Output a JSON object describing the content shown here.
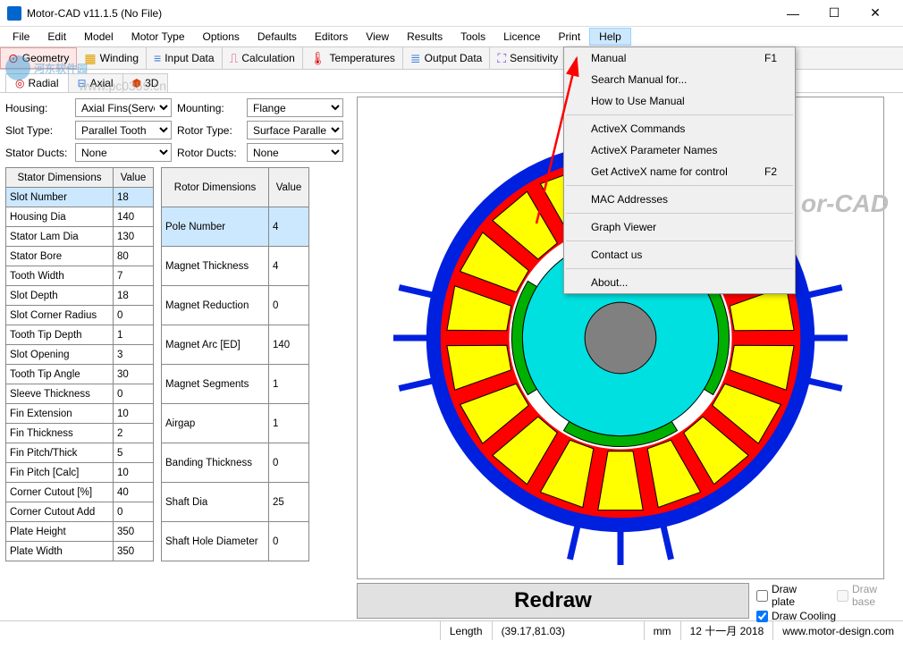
{
  "window": {
    "title": "Motor-CAD v11.1.5 (No File)"
  },
  "menubar": [
    "File",
    "Edit",
    "Model",
    "Motor Type",
    "Options",
    "Defaults",
    "Editors",
    "View",
    "Results",
    "Tools",
    "Licence",
    "Print",
    "Help"
  ],
  "menubar_active_index": 12,
  "toolbar": [
    {
      "label": "Geometry",
      "icon": "⊙",
      "color": "#d00000",
      "active": true
    },
    {
      "label": "Winding",
      "icon": "▦",
      "color": "#e0a000"
    },
    {
      "label": "Input Data",
      "icon": "≡",
      "color": "#4080e0"
    },
    {
      "label": "Calculation",
      "icon": "⎍",
      "color": "#e04080"
    },
    {
      "label": "Temperatures",
      "icon": "🌡",
      "color": "#e00000"
    },
    {
      "label": "Output Data",
      "icon": "≣",
      "color": "#4080e0"
    },
    {
      "label": "Sensitivity",
      "icon": "⛶",
      "color": "#8040e0"
    },
    {
      "label": "",
      "icon": "➜",
      "color": "#00a000"
    }
  ],
  "subtabs": [
    {
      "label": "Radial",
      "icon": "◎",
      "color": "#d00000",
      "active": true
    },
    {
      "label": "Axial",
      "icon": "⊟",
      "color": "#4080e0"
    },
    {
      "label": "3D",
      "icon": "⬢",
      "color": "#e04000"
    }
  ],
  "selectors": {
    "housing": {
      "label": "Housing:",
      "value": "Axial Fins(Servo)"
    },
    "mounting": {
      "label": "Mounting:",
      "value": "Flange"
    },
    "slot_type": {
      "label": "Slot Type:",
      "value": "Parallel Tooth"
    },
    "rotor_type": {
      "label": "Rotor Type:",
      "value": "Surface Parallel"
    },
    "stator_ducts": {
      "label": "Stator Ducts:",
      "value": "None"
    },
    "rotor_ducts": {
      "label": "Rotor Ducts:",
      "value": "None"
    }
  },
  "stator_table": {
    "columns": [
      "Stator Dimensions",
      "Value"
    ],
    "selected_row": 0,
    "rows": [
      [
        "Slot Number",
        "18"
      ],
      [
        "Housing Dia",
        "140"
      ],
      [
        "Stator Lam Dia",
        "130"
      ],
      [
        "Stator Bore",
        "80"
      ],
      [
        "Tooth Width",
        "7"
      ],
      [
        "Slot Depth",
        "18"
      ],
      [
        "Slot Corner Radius",
        "0"
      ],
      [
        "Tooth Tip Depth",
        "1"
      ],
      [
        "Slot Opening",
        "3"
      ],
      [
        "Tooth Tip Angle",
        "30"
      ],
      [
        "Sleeve Thickness",
        "0"
      ],
      [
        "Fin Extension",
        "10"
      ],
      [
        "Fin Thickness",
        "2"
      ],
      [
        "Fin Pitch/Thick",
        "5"
      ],
      [
        "Fin Pitch [Calc]",
        "10"
      ],
      [
        "Corner Cutout [%]",
        "40"
      ],
      [
        "Corner Cutout Add",
        "0"
      ],
      [
        "Plate Height",
        "350"
      ],
      [
        "Plate Width",
        "350"
      ]
    ]
  },
  "rotor_table": {
    "columns": [
      "Rotor Dimensions",
      "Value"
    ],
    "selected_row": 0,
    "rows": [
      [
        "Pole Number",
        "4"
      ],
      [
        "Magnet Thickness",
        "4"
      ],
      [
        "Magnet Reduction",
        "0"
      ],
      [
        "Magnet Arc [ED]",
        "140"
      ],
      [
        "Magnet Segments",
        "1"
      ],
      [
        "Airgap",
        "1"
      ],
      [
        "Banding Thickness",
        "0"
      ],
      [
        "Shaft Dia",
        "25"
      ],
      [
        "Shaft Hole Diameter",
        "0"
      ]
    ]
  },
  "help_menu": [
    {
      "label": "Manual",
      "shortcut": "F1"
    },
    {
      "label": "Search Manual for..."
    },
    {
      "label": "How to Use Manual"
    },
    {
      "sep": true
    },
    {
      "label": "ActiveX Commands"
    },
    {
      "label": "ActiveX Parameter Names"
    },
    {
      "label": "Get ActiveX name for control",
      "shortcut": "F2"
    },
    {
      "sep": true
    },
    {
      "label": "MAC Addresses"
    },
    {
      "sep": true
    },
    {
      "label": "Graph Viewer"
    },
    {
      "sep": true
    },
    {
      "label": "Contact us"
    },
    {
      "sep": true
    },
    {
      "label": "About..."
    }
  ],
  "redraw_label": "Redraw",
  "checkboxes": {
    "draw_plate": {
      "label": "Draw plate",
      "checked": false,
      "enabled": true
    },
    "draw_base": {
      "label": "Draw base",
      "checked": false,
      "enabled": false
    },
    "draw_cooling": {
      "label": "Draw Cooling",
      "checked": true,
      "enabled": true
    }
  },
  "statusbar": {
    "length_label": "Length",
    "coords": "(39.17,81.03)",
    "unit": "mm",
    "date": "12 十一月 2018",
    "url": "www.motor-design.com"
  },
  "brand": "or-CAD",
  "watermark_text": "河东软件园",
  "watermark_url": "www.pc0359.cn",
  "motor_colors": {
    "outer_ring": "#0020e0",
    "stator": "#ff0000",
    "slots": "#ffff00",
    "rotor": "#00e0e0",
    "magnets": "#00b000",
    "shaft": "#808080",
    "fins": "#0020e0"
  }
}
